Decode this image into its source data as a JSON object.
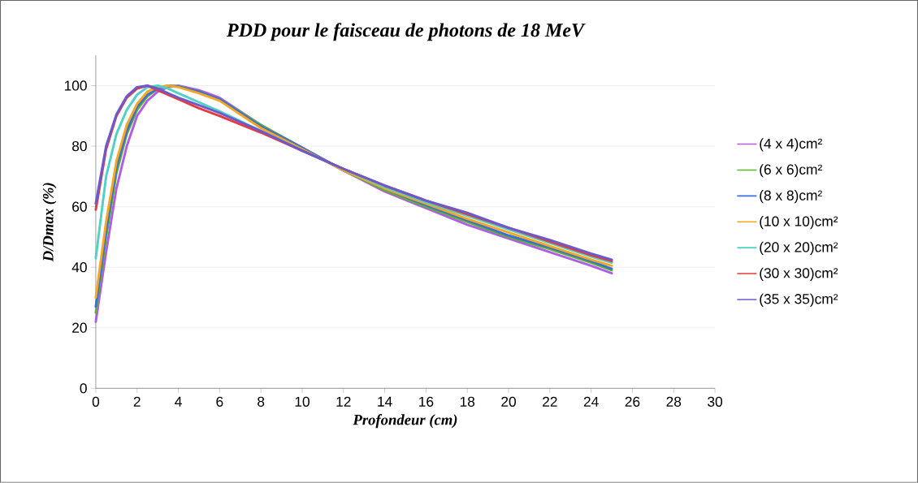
{
  "chart_data": {
    "type": "line",
    "title": "PDD pour le faisceau de photons de 18 MeV",
    "xlabel": "Profondeur (cm)",
    "ylabel": "D/Dmax (%)",
    "x": [
      0,
      0.5,
      1,
      1.5,
      2,
      2.5,
      3,
      3.5,
      4,
      5,
      6,
      8,
      10,
      12,
      14,
      16,
      18,
      20,
      22,
      24,
      25
    ],
    "series": [
      {
        "name": "(4 x 4)cm²",
        "color": "#b05ce6",
        "values": [
          22,
          45,
          66,
          80,
          90,
          95,
          98,
          99.5,
          100,
          98.5,
          96,
          87,
          79.5,
          72,
          65,
          59.5,
          54,
          49.5,
          45,
          40.5,
          38
        ]
      },
      {
        "name": "(6 x 6)cm²",
        "color": "#5ab52a",
        "values": [
          25,
          50,
          71,
          84,
          92,
          96.5,
          99,
          100,
          99.8,
          98,
          95.5,
          87,
          79.5,
          72,
          65.5,
          60,
          55,
          50,
          46,
          41.5,
          39
        ]
      },
      {
        "name": "(8 x 8)cm²",
        "color": "#3a6fd8",
        "values": [
          27,
          52,
          73,
          85,
          93,
          97,
          99,
          100,
          99.7,
          98,
          95.5,
          86.5,
          79.5,
          72,
          66,
          60.5,
          55.5,
          50.5,
          46.5,
          42,
          39.5
        ]
      },
      {
        "name": "(10 x 10)cm²",
        "color": "#f5a623",
        "values": [
          30,
          55,
          75,
          87,
          94,
          98,
          99.5,
          100,
          99.5,
          97.5,
          95,
          86,
          79,
          72,
          66,
          61,
          56,
          51.5,
          47,
          42.5,
          40.5
        ]
      },
      {
        "name": "(20 x 20)cm²",
        "color": "#4fd1c5",
        "values": [
          43,
          70,
          84,
          92,
          97,
          99.5,
          100,
          99,
          97.5,
          94.5,
          91.5,
          85,
          78.5,
          72.5,
          66.5,
          61.5,
          57,
          52.5,
          48,
          43.5,
          41.5
        ]
      },
      {
        "name": "(30 x 30)cm²",
        "color": "#e83a3a",
        "values": [
          59,
          79,
          90,
          96,
          99,
          100,
          98.5,
          97,
          95.5,
          92.5,
          90,
          84.5,
          78.5,
          72.5,
          67,
          62,
          57.5,
          53,
          48.5,
          44,
          42
        ]
      },
      {
        "name": "(35 x 35)cm²",
        "color": "#6a5acd",
        "values": [
          61,
          80,
          90.5,
          96.5,
          99.5,
          100,
          99,
          97.5,
          96,
          93.5,
          91,
          85,
          78.5,
          72.5,
          67,
          62,
          58,
          53,
          49,
          44.5,
          42.5
        ]
      }
    ],
    "xlim": [
      0,
      30
    ],
    "xticks": [
      0,
      2,
      4,
      6,
      8,
      10,
      12,
      14,
      16,
      18,
      20,
      22,
      24,
      26,
      28,
      30
    ],
    "ylim": [
      0,
      110
    ],
    "yticks": [
      0,
      20,
      40,
      60,
      80,
      100
    ],
    "grid": "y",
    "legend": "right",
    "marker": "none",
    "line_style": "solid"
  }
}
